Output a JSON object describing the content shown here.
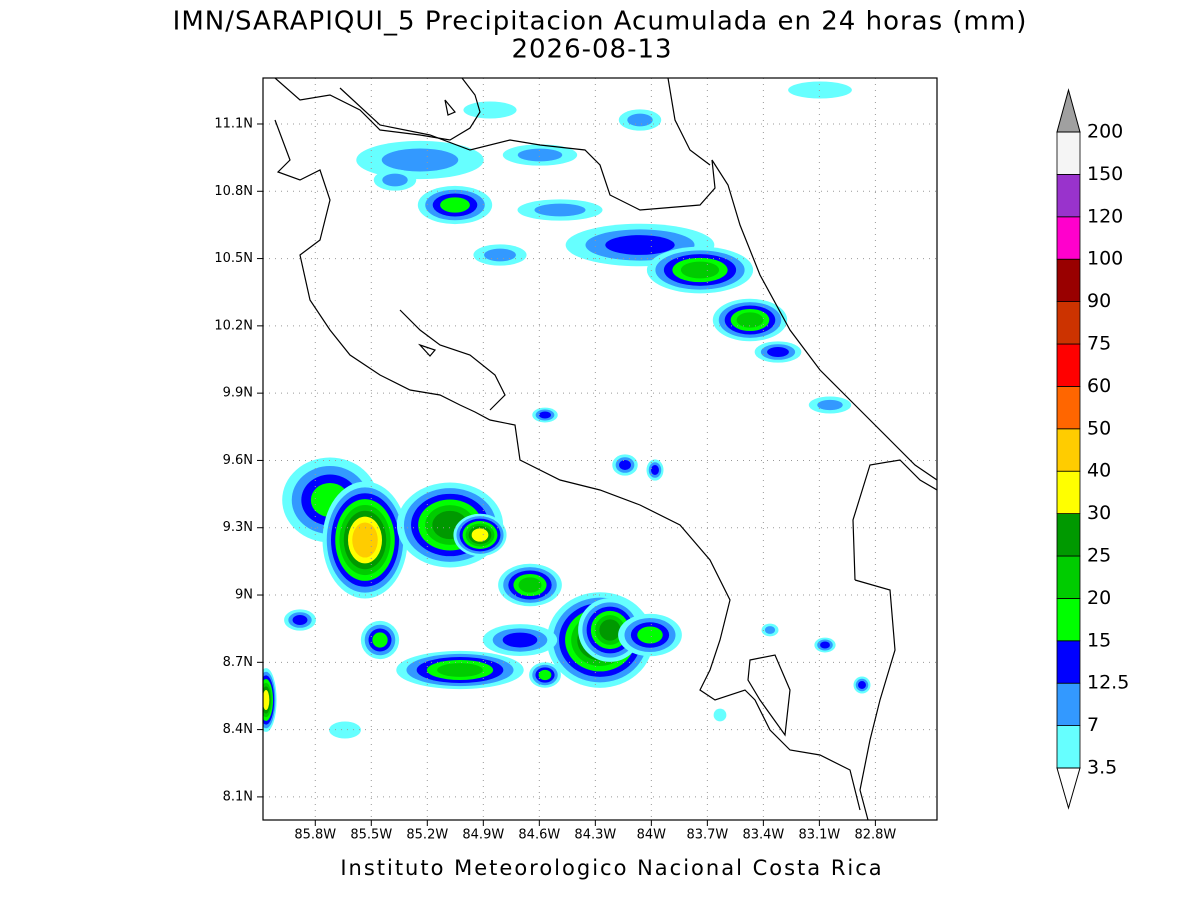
{
  "title": "IMN/SARAPIQUI_5 Precipitacion Acumulada en 24 horas (mm)",
  "subtitle": "2026-08-13",
  "footer": "Instituto Meteorologico Nacional Costa Rica",
  "map": {
    "xlim": [
      -86.08,
      -82.47
    ],
    "ylim": [
      7.997,
      11.305
    ],
    "yticks": [
      {
        "value": 8.1,
        "label": "8.1N"
      },
      {
        "value": 8.4,
        "label": "8.4N"
      },
      {
        "value": 8.7,
        "label": "8.7N"
      },
      {
        "value": 9,
        "label": "9N"
      },
      {
        "value": 9.3,
        "label": "9.3N"
      },
      {
        "value": 9.6,
        "label": "9.6N"
      },
      {
        "value": 9.9,
        "label": "9.9N"
      },
      {
        "value": 10.2,
        "label": "10.2N"
      },
      {
        "value": 10.5,
        "label": "10.5N"
      },
      {
        "value": 10.8,
        "label": "10.8N"
      },
      {
        "value": 11.1,
        "label": "11.1N"
      }
    ],
    "xticks": [
      {
        "value": -85.8,
        "label": "85.8W"
      },
      {
        "value": -85.5,
        "label": "85.5W"
      },
      {
        "value": -85.2,
        "label": "85.2W"
      },
      {
        "value": -84.9,
        "label": "84.9W"
      },
      {
        "value": -84.6,
        "label": "84.6W"
      },
      {
        "value": -84.3,
        "label": "84.3W"
      },
      {
        "value": -84,
        "label": "84W"
      },
      {
        "value": -83.7,
        "label": "83.7W"
      },
      {
        "value": -83.4,
        "label": "83.4W"
      },
      {
        "value": -83.1,
        "label": "83.1W"
      },
      {
        "value": -82.8,
        "label": "82.8W"
      }
    ],
    "grid": true
  },
  "colorbar": {
    "levels": [
      3.5,
      7,
      12.5,
      15,
      20,
      25,
      30,
      40,
      50,
      60,
      75,
      90,
      100,
      120,
      150,
      200
    ],
    "colors": [
      "#66ffff",
      "#3399ff",
      "#0000ff",
      "#00ff00",
      "#00cc00",
      "#009900",
      "#ffff00",
      "#ffcc00",
      "#ff6600",
      "#ff0000",
      "#cc3300",
      "#990000",
      "#ff00cc",
      "#9933cc",
      "#f5f5f5"
    ],
    "below_color": "#ffffff",
    "above_color": "#a0a0a0"
  }
}
